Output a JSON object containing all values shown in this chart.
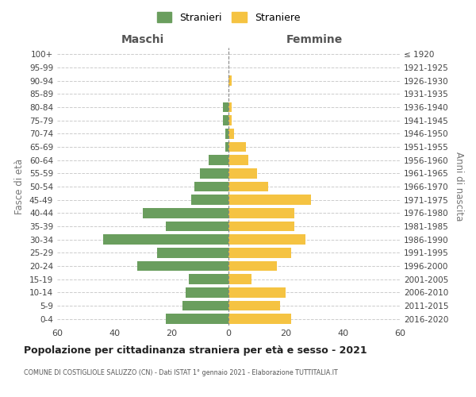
{
  "age_groups": [
    "0-4",
    "5-9",
    "10-14",
    "15-19",
    "20-24",
    "25-29",
    "30-34",
    "35-39",
    "40-44",
    "45-49",
    "50-54",
    "55-59",
    "60-64",
    "65-69",
    "70-74",
    "75-79",
    "80-84",
    "85-89",
    "90-94",
    "95-99",
    "100+"
  ],
  "birth_years": [
    "2016-2020",
    "2011-2015",
    "2006-2010",
    "2001-2005",
    "1996-2000",
    "1991-1995",
    "1986-1990",
    "1981-1985",
    "1976-1980",
    "1971-1975",
    "1966-1970",
    "1961-1965",
    "1956-1960",
    "1951-1955",
    "1946-1950",
    "1941-1945",
    "1936-1940",
    "1931-1935",
    "1926-1930",
    "1921-1925",
    "≤ 1920"
  ],
  "maschi": [
    22,
    16,
    15,
    14,
    32,
    25,
    44,
    22,
    30,
    13,
    12,
    10,
    7,
    1,
    1,
    2,
    2,
    0,
    0,
    0,
    0
  ],
  "femmine": [
    22,
    18,
    20,
    8,
    17,
    22,
    27,
    23,
    23,
    29,
    14,
    10,
    7,
    6,
    2,
    1,
    1,
    0,
    1,
    0,
    0
  ],
  "maschi_color": "#6a9e5e",
  "femmine_color": "#f5c342",
  "background_color": "#ffffff",
  "grid_color": "#cccccc",
  "title": "Popolazione per cittadinanza straniera per età e sesso - 2021",
  "subtitle": "COMUNE DI COSTIGLIOLE SALUZZO (CN) - Dati ISTAT 1° gennaio 2021 - Elaborazione TUTTITALIA.IT",
  "xlabel_left": "Maschi",
  "xlabel_right": "Femmine",
  "ylabel_left": "Fasce di età",
  "ylabel_right": "Anni di nascita",
  "legend_stranieri": "Stranieri",
  "legend_straniere": "Straniere",
  "xlim": 60
}
